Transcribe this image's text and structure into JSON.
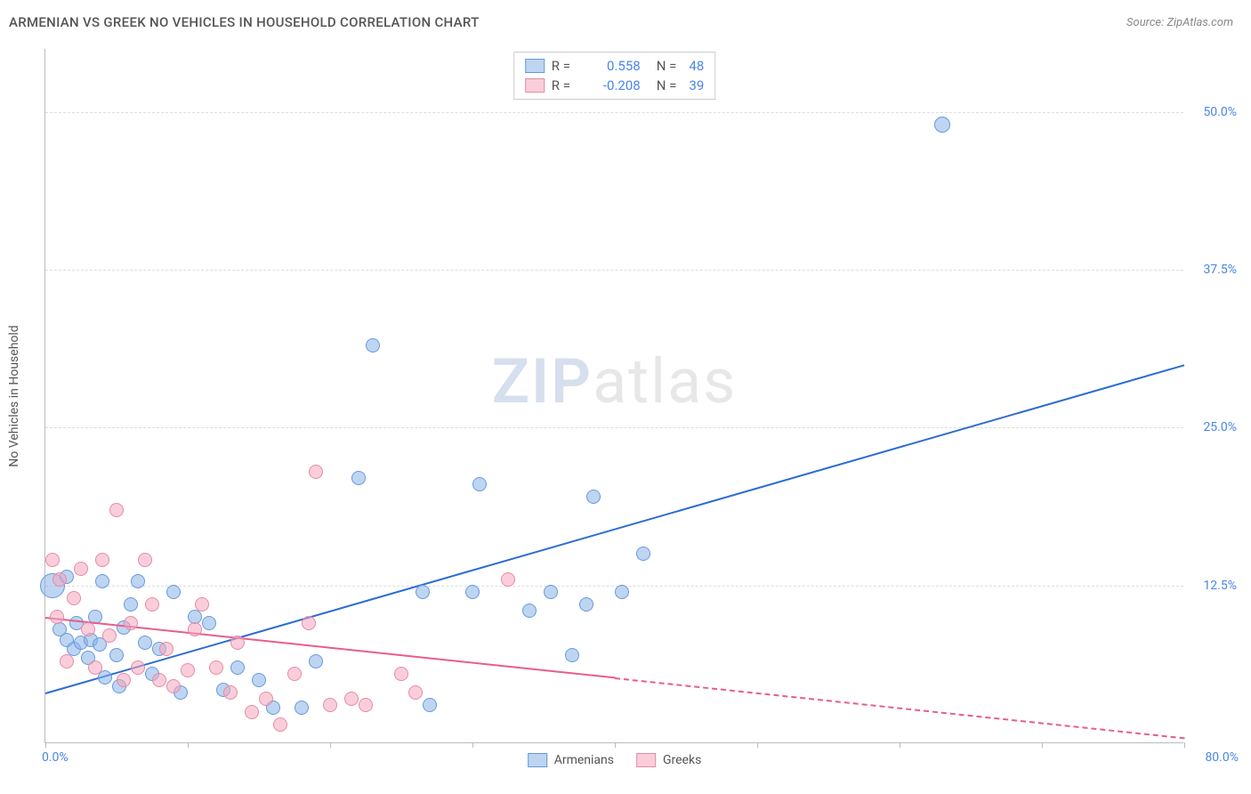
{
  "header": {
    "title": "ARMENIAN VS GREEK NO VEHICLES IN HOUSEHOLD CORRELATION CHART",
    "source_prefix": "Source: ",
    "source_link": "ZipAtlas.com"
  },
  "chart": {
    "type": "scatter",
    "y_axis_label": "No Vehicles in Household",
    "xlim": [
      0,
      80
    ],
    "ylim": [
      0,
      55
    ],
    "x_min_label": "0.0%",
    "x_max_label": "80.0%",
    "y_ticks": [
      {
        "v": 12.5,
        "label": "12.5%"
      },
      {
        "v": 25.0,
        "label": "25.0%"
      },
      {
        "v": 37.5,
        "label": "37.5%"
      },
      {
        "v": 50.0,
        "label": "50.0%"
      }
    ],
    "x_tick_step": 10,
    "background_color": "#ffffff",
    "grid_color": "#dddddd",
    "watermark": {
      "zip": "ZIP",
      "atlas": "atlas"
    },
    "series": [
      {
        "key": "armenians",
        "label": "Armenians",
        "fill": "rgba(137, 179, 231, 0.55)",
        "stroke": "#6699dd",
        "line_color": "#2b6cd4",
        "r_label": "R =",
        "r_value": "0.558",
        "n_label": "N =",
        "n_value": "48",
        "trend": {
          "x1": 0,
          "y1": 4.0,
          "x2": 80,
          "y2": 30.0,
          "dash_from_x": 80
        },
        "points": [
          {
            "x": 0.5,
            "y": 12.5,
            "r": 14
          },
          {
            "x": 1.0,
            "y": 9.0,
            "r": 8
          },
          {
            "x": 1.5,
            "y": 8.2,
            "r": 8
          },
          {
            "x": 1.5,
            "y": 13.2,
            "r": 8
          },
          {
            "x": 2.0,
            "y": 7.5,
            "r": 8
          },
          {
            "x": 2.2,
            "y": 9.5,
            "r": 8
          },
          {
            "x": 2.5,
            "y": 8.0,
            "r": 8
          },
          {
            "x": 3.0,
            "y": 6.8,
            "r": 8
          },
          {
            "x": 3.2,
            "y": 8.2,
            "r": 8
          },
          {
            "x": 3.5,
            "y": 10.0,
            "r": 8
          },
          {
            "x": 3.8,
            "y": 7.8,
            "r": 8
          },
          {
            "x": 4.0,
            "y": 12.8,
            "r": 8
          },
          {
            "x": 4.2,
            "y": 5.2,
            "r": 8
          },
          {
            "x": 5.0,
            "y": 7.0,
            "r": 8
          },
          {
            "x": 5.2,
            "y": 4.5,
            "r": 8
          },
          {
            "x": 5.5,
            "y": 9.2,
            "r": 8
          },
          {
            "x": 6.0,
            "y": 11.0,
            "r": 8
          },
          {
            "x": 6.5,
            "y": 12.8,
            "r": 8
          },
          {
            "x": 7.0,
            "y": 8.0,
            "r": 8
          },
          {
            "x": 7.5,
            "y": 5.5,
            "r": 8
          },
          {
            "x": 8.0,
            "y": 7.5,
            "r": 8
          },
          {
            "x": 9.0,
            "y": 12.0,
            "r": 8
          },
          {
            "x": 9.5,
            "y": 4.0,
            "r": 8
          },
          {
            "x": 10.5,
            "y": 10.0,
            "r": 8
          },
          {
            "x": 11.5,
            "y": 9.5,
            "r": 8
          },
          {
            "x": 12.5,
            "y": 4.2,
            "r": 8
          },
          {
            "x": 13.5,
            "y": 6.0,
            "r": 8
          },
          {
            "x": 15.0,
            "y": 5.0,
            "r": 8
          },
          {
            "x": 16.0,
            "y": 2.8,
            "r": 8
          },
          {
            "x": 18.0,
            "y": 2.8,
            "r": 8
          },
          {
            "x": 19.0,
            "y": 6.5,
            "r": 8
          },
          {
            "x": 22.0,
            "y": 21.0,
            "r": 8
          },
          {
            "x": 23.0,
            "y": 31.5,
            "r": 8
          },
          {
            "x": 26.5,
            "y": 12.0,
            "r": 8
          },
          {
            "x": 27.0,
            "y": 3.0,
            "r": 8
          },
          {
            "x": 30.0,
            "y": 12.0,
            "r": 8
          },
          {
            "x": 30.5,
            "y": 20.5,
            "r": 8
          },
          {
            "x": 34.0,
            "y": 10.5,
            "r": 8
          },
          {
            "x": 35.5,
            "y": 12.0,
            "r": 8
          },
          {
            "x": 37.0,
            "y": 7.0,
            "r": 8
          },
          {
            "x": 38.0,
            "y": 11.0,
            "r": 8
          },
          {
            "x": 38.5,
            "y": 19.5,
            "r": 8
          },
          {
            "x": 40.5,
            "y": 12.0,
            "r": 8
          },
          {
            "x": 42.0,
            "y": 15.0,
            "r": 8
          },
          {
            "x": 63.0,
            "y": 49.0,
            "r": 9
          }
        ]
      },
      {
        "key": "greeks",
        "label": "Greeks",
        "fill": "rgba(244, 166, 188, 0.55)",
        "stroke": "#e68aa6",
        "line_color": "#e85d8a",
        "r_label": "R =",
        "r_value": "-0.208",
        "n_label": "N =",
        "n_value": "39",
        "trend": {
          "x1": 0,
          "y1": 10.0,
          "x2": 80,
          "y2": 0.5,
          "dash_from_x": 40
        },
        "points": [
          {
            "x": 0.5,
            "y": 14.5,
            "r": 8
          },
          {
            "x": 0.8,
            "y": 10.0,
            "r": 8
          },
          {
            "x": 1.0,
            "y": 13.0,
            "r": 8
          },
          {
            "x": 1.5,
            "y": 6.5,
            "r": 8
          },
          {
            "x": 2.0,
            "y": 11.5,
            "r": 8
          },
          {
            "x": 2.5,
            "y": 13.8,
            "r": 8
          },
          {
            "x": 3.0,
            "y": 9.0,
            "r": 8
          },
          {
            "x": 3.5,
            "y": 6.0,
            "r": 8
          },
          {
            "x": 4.0,
            "y": 14.5,
            "r": 8
          },
          {
            "x": 4.5,
            "y": 8.5,
            "r": 8
          },
          {
            "x": 5.0,
            "y": 18.5,
            "r": 8
          },
          {
            "x": 5.5,
            "y": 5.0,
            "r": 8
          },
          {
            "x": 6.0,
            "y": 9.5,
            "r": 8
          },
          {
            "x": 6.5,
            "y": 6.0,
            "r": 8
          },
          {
            "x": 7.0,
            "y": 14.5,
            "r": 8
          },
          {
            "x": 7.5,
            "y": 11.0,
            "r": 8
          },
          {
            "x": 8.0,
            "y": 5.0,
            "r": 8
          },
          {
            "x": 8.5,
            "y": 7.5,
            "r": 8
          },
          {
            "x": 9.0,
            "y": 4.5,
            "r": 8
          },
          {
            "x": 10.0,
            "y": 5.8,
            "r": 8
          },
          {
            "x": 10.5,
            "y": 9.0,
            "r": 8
          },
          {
            "x": 11.0,
            "y": 11.0,
            "r": 8
          },
          {
            "x": 12.0,
            "y": 6.0,
            "r": 8
          },
          {
            "x": 13.0,
            "y": 4.0,
            "r": 8
          },
          {
            "x": 13.5,
            "y": 8.0,
            "r": 8
          },
          {
            "x": 14.5,
            "y": 2.5,
            "r": 8
          },
          {
            "x": 15.5,
            "y": 3.5,
            "r": 8
          },
          {
            "x": 16.5,
            "y": 1.5,
            "r": 8
          },
          {
            "x": 17.5,
            "y": 5.5,
            "r": 8
          },
          {
            "x": 18.5,
            "y": 9.5,
            "r": 8
          },
          {
            "x": 19.0,
            "y": 21.5,
            "r": 8
          },
          {
            "x": 20.0,
            "y": 3.0,
            "r": 8
          },
          {
            "x": 21.5,
            "y": 3.5,
            "r": 8
          },
          {
            "x": 22.5,
            "y": 3.0,
            "r": 8
          },
          {
            "x": 25.0,
            "y": 5.5,
            "r": 8
          },
          {
            "x": 26.0,
            "y": 4.0,
            "r": 8
          },
          {
            "x": 32.5,
            "y": 13.0,
            "r": 8
          }
        ]
      }
    ],
    "legend_bottom": [
      {
        "key": "armenians",
        "label": "Armenians"
      },
      {
        "key": "greeks",
        "label": "Greeks"
      }
    ]
  }
}
